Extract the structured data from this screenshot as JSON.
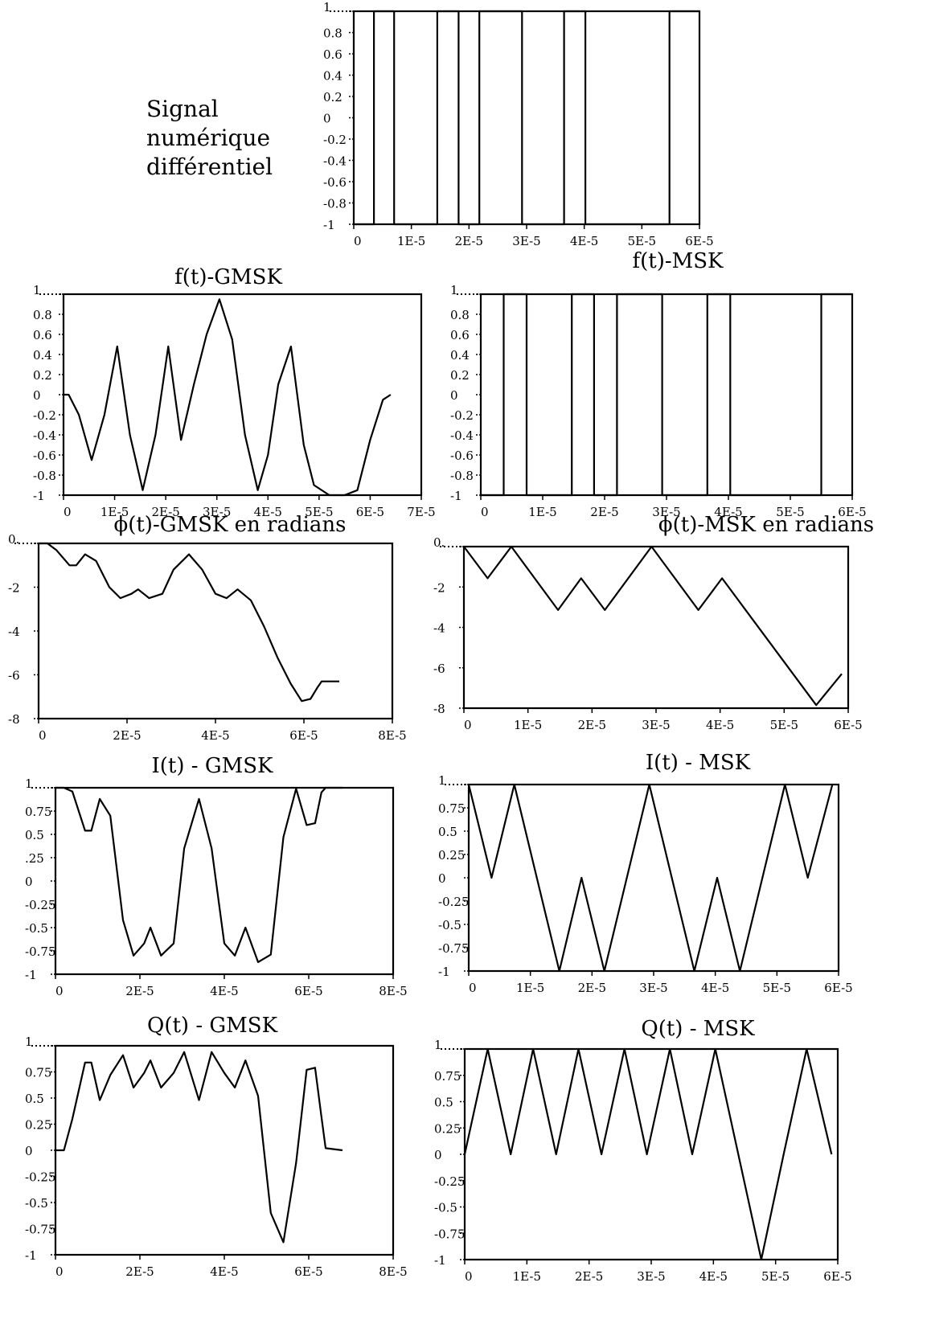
{
  "side_label": [
    "Signal",
    "numérique",
    "différentiel"
  ],
  "chart_data": [
    {
      "id": "digital",
      "type": "line",
      "title": "",
      "xlabel": "",
      "ylabel": "",
      "xlim": [
        0,
        6e-05
      ],
      "ylim": [
        -1,
        1
      ],
      "xticks": [
        "0",
        "1E-5",
        "2E-5",
        "3E-5",
        "4E-5",
        "5E-5",
        "6E-5"
      ],
      "xtick_values": [
        0,
        1e-05,
        2e-05,
        3e-05,
        4e-05,
        5e-05,
        6e-05
      ],
      "yticks": [
        "1",
        "0.8",
        "0.6",
        "0.4",
        "0.2",
        "0",
        "-0.2",
        "-0.4",
        "-0.6",
        "-0.8",
        "-1"
      ],
      "ytick_values": [
        1,
        0.8,
        0.6,
        0.4,
        0.2,
        0,
        -0.2,
        -0.4,
        -0.6,
        -0.8,
        -1
      ],
      "grid": false,
      "series": [
        {
          "x": [
            0,
            3.5e-06,
            3.5e-06,
            7e-06,
            7e-06,
            1.45e-05,
            1.45e-05,
            1.82e-05,
            1.82e-05,
            2.18e-05,
            2.18e-05,
            2.92e-05,
            2.92e-05,
            3.65e-05,
            3.65e-05,
            4.02e-05,
            4.02e-05,
            5.48e-05,
            5.48e-05,
            6e-05
          ],
          "y": [
            -1,
            -1,
            1,
            1,
            -1,
            -1,
            1,
            1,
            -1,
            -1,
            1,
            1,
            -1,
            -1,
            1,
            1,
            -1,
            -1,
            1,
            1
          ]
        }
      ]
    },
    {
      "id": "f-gmsk",
      "type": "line",
      "title": "f(t)-GMSK",
      "xlabel": "",
      "ylabel": "",
      "xlim": [
        0,
        7e-05
      ],
      "ylim": [
        -1,
        1
      ],
      "xticks": [
        "0",
        "1E-5",
        "2E-5",
        "3E-5",
        "4E-5",
        "5E-5",
        "6E-5",
        "7E-5"
      ],
      "xtick_values": [
        0,
        1e-05,
        2e-05,
        3e-05,
        4e-05,
        5e-05,
        6e-05,
        7e-05
      ],
      "yticks": [
        "1",
        "0.8",
        "0.6",
        "0.4",
        "0.2",
        "0",
        "-0.2",
        "-0.4",
        "-0.6",
        "-0.8",
        "-1"
      ],
      "ytick_values": [
        1,
        0.8,
        0.6,
        0.4,
        0.2,
        0,
        -0.2,
        -0.4,
        -0.6,
        -0.8,
        -1
      ],
      "grid": false,
      "series": [
        {
          "x": [
            0,
            1e-06,
            3e-06,
            5.5e-06,
            8e-06,
            1.05e-05,
            1.3e-05,
            1.55e-05,
            1.8e-05,
            2.05e-05,
            2.3e-05,
            2.55e-05,
            2.8e-05,
            3.05e-05,
            3.3e-05,
            3.55e-05,
            3.8e-05,
            4e-05,
            4.2e-05,
            4.45e-05,
            4.7e-05,
            4.9e-05,
            5.2e-05,
            5.5e-05,
            5.75e-05,
            6e-05,
            6.25e-05,
            6.4e-05
          ],
          "y": [
            0,
            0,
            -0.2,
            -0.65,
            -0.2,
            0.48,
            -0.4,
            -0.95,
            -0.4,
            0.48,
            -0.45,
            0.1,
            0.6,
            0.95,
            0.55,
            -0.4,
            -0.95,
            -0.6,
            0.1,
            0.48,
            -0.5,
            -0.9,
            -1,
            -1,
            -0.95,
            -0.45,
            -0.05,
            0
          ]
        }
      ]
    },
    {
      "id": "f-msk",
      "type": "line",
      "title": "f(t)-MSK",
      "xlabel": "",
      "ylabel": "",
      "xlim": [
        0,
        6e-05
      ],
      "ylim": [
        -1,
        1
      ],
      "xticks": [
        "0",
        "1E-5",
        "2E-5",
        "3E-5",
        "4E-5",
        "5E-5",
        "6E-5"
      ],
      "xtick_values": [
        0,
        1e-05,
        2e-05,
        3e-05,
        4e-05,
        5e-05,
        6e-05
      ],
      "yticks": [
        "1",
        "0.8",
        "0.6",
        "0.4",
        "0.2",
        "0",
        "-0.2",
        "-0.4",
        "-0.6",
        "-0.8",
        "-1"
      ],
      "ytick_values": [
        1,
        0.8,
        0.6,
        0.4,
        0.2,
        0,
        -0.2,
        -0.4,
        -0.6,
        -0.8,
        -1
      ],
      "grid": false,
      "series": [
        {
          "x": [
            0,
            3.7e-06,
            3.7e-06,
            7.4e-06,
            7.4e-06,
            1.47e-05,
            1.47e-05,
            1.83e-05,
            1.83e-05,
            2.2e-05,
            2.2e-05,
            2.93e-05,
            2.93e-05,
            3.66e-05,
            3.66e-05,
            4.03e-05,
            4.03e-05,
            5.5e-05,
            5.5e-05,
            6e-05
          ],
          "y": [
            -1,
            -1,
            1,
            1,
            -1,
            -1,
            1,
            1,
            -1,
            -1,
            1,
            1,
            -1,
            -1,
            1,
            1,
            -1,
            -1,
            1,
            1
          ]
        }
      ]
    },
    {
      "id": "phi-gmsk",
      "type": "line",
      "title": "ϕ(t)-GMSK en radians",
      "xlabel": "",
      "ylabel": "",
      "xlim": [
        0,
        8e-05
      ],
      "ylim": [
        -8,
        0
      ],
      "xticks": [
        "0",
        "2E-5",
        "4E-5",
        "6E-5",
        "8E-5"
      ],
      "xtick_values": [
        0,
        2e-05,
        4e-05,
        6e-05,
        8e-05
      ],
      "yticks": [
        "0.",
        "-2",
        "-4",
        "-6",
        "-8"
      ],
      "ytick_values": [
        0,
        -2,
        -4,
        -6,
        -8
      ],
      "grid": false,
      "series": [
        {
          "x": [
            0,
            2e-06,
            4e-06,
            7e-06,
            8.5e-06,
            1.05e-05,
            1.3e-05,
            1.6e-05,
            1.85e-05,
            2.1e-05,
            2.25e-05,
            2.5e-05,
            2.8e-05,
            3.05e-05,
            3.4e-05,
            3.7e-05,
            4e-05,
            4.25e-05,
            4.5e-05,
            4.8e-05,
            5.1e-05,
            5.4e-05,
            5.7e-05,
            5.95e-05,
            6.15e-05,
            6.3e-05,
            6.4e-05,
            6.8e-05
          ],
          "y": [
            0,
            0,
            -0.3,
            -1,
            -1,
            -0.5,
            -0.8,
            -2,
            -2.5,
            -2.3,
            -2.1,
            -2.5,
            -2.3,
            -1.2,
            -0.5,
            -1.2,
            -2.3,
            -2.5,
            -2.1,
            -2.6,
            -3.8,
            -5.2,
            -6.4,
            -7.2,
            -7.1,
            -6.6,
            -6.3,
            -6.3
          ]
        }
      ]
    },
    {
      "id": "phi-msk",
      "type": "line",
      "title": "ϕ(t)-MSK en radians",
      "xlabel": "",
      "ylabel": "",
      "xlim": [
        0,
        6e-05
      ],
      "ylim": [
        -8,
        0
      ],
      "xticks": [
        "0",
        "1E-5",
        "2E-5",
        "3E-5",
        "4E-5",
        "5E-5",
        "6E-5"
      ],
      "xtick_values": [
        0,
        1e-05,
        2e-05,
        3e-05,
        4e-05,
        5e-05,
        6e-05
      ],
      "yticks": [
        "0.",
        "-2",
        "-4",
        "-6",
        "-8"
      ],
      "ytick_values": [
        0,
        -2,
        -4,
        -6,
        -8
      ],
      "grid": false,
      "series": [
        {
          "x": [
            0,
            3.7e-06,
            7.4e-06,
            1.47e-05,
            1.83e-05,
            2.2e-05,
            2.93e-05,
            3.66e-05,
            4.03e-05,
            5.5e-05,
            5.9e-05
          ],
          "y": [
            0,
            -1.57,
            0,
            -3.14,
            -1.57,
            -3.14,
            0,
            -3.14,
            -1.57,
            -7.85,
            -6.3
          ]
        }
      ]
    },
    {
      "id": "i-gmsk",
      "type": "line",
      "title": "I(t) - GMSK",
      "xlabel": "",
      "ylabel": "",
      "xlim": [
        0,
        8e-05
      ],
      "ylim": [
        -1,
        1
      ],
      "xticks": [
        "0",
        "2E-5",
        "4E-5",
        "6E-5",
        "8E-5"
      ],
      "xtick_values": [
        0,
        2e-05,
        4e-05,
        6e-05,
        8e-05
      ],
      "yticks": [
        "1",
        "0.75",
        "0.5",
        ".25",
        "0",
        "-0.25",
        "-0.5",
        "-0.75",
        "-1"
      ],
      "ytick_values": [
        1,
        0.75,
        0.5,
        0.25,
        0,
        -0.25,
        -0.5,
        -0.75,
        -1
      ],
      "grid": false,
      "series": [
        {
          "x": [
            0,
            2e-06,
            4e-06,
            7e-06,
            8.5e-06,
            1.05e-05,
            1.3e-05,
            1.6e-05,
            1.85e-05,
            2.1e-05,
            2.25e-05,
            2.5e-05,
            2.8e-05,
            3.05e-05,
            3.4e-05,
            3.7e-05,
            4e-05,
            4.25e-05,
            4.5e-05,
            4.8e-05,
            5.1e-05,
            5.4e-05,
            5.7e-05,
            5.95e-05,
            6.15e-05,
            6.3e-05,
            6.4e-05,
            6.8e-05
          ],
          "y": [
            1,
            1,
            0.96,
            0.54,
            0.54,
            0.88,
            0.7,
            -0.42,
            -0.8,
            -0.67,
            -0.5,
            -0.8,
            -0.67,
            0.35,
            0.88,
            0.35,
            -0.67,
            -0.8,
            -0.5,
            -0.87,
            -0.79,
            0.47,
            0.99,
            0.6,
            0.62,
            0.95,
            1,
            1
          ]
        }
      ]
    },
    {
      "id": "i-msk",
      "type": "line",
      "title": "I(t) - MSK",
      "xlabel": "",
      "ylabel": "",
      "xlim": [
        0,
        6e-05
      ],
      "ylim": [
        -1,
        1
      ],
      "xticks": [
        "0",
        "1E-5",
        "2E-5",
        "3E-5",
        "4E-5",
        "5E-5",
        "6E-5"
      ],
      "xtick_values": [
        0,
        1e-05,
        2e-05,
        3e-05,
        4e-05,
        5e-05,
        6e-05
      ],
      "yticks": [
        "1",
        "0.75",
        "0.5",
        "0.25",
        "0",
        "-0.25",
        "-0.5",
        "-0.75",
        "-1"
      ],
      "ytick_values": [
        1,
        0.75,
        0.5,
        0.25,
        0,
        -0.25,
        -0.5,
        -0.75,
        -1
      ],
      "grid": false,
      "series": [
        {
          "x": [
            0,
            3.7e-06,
            7.4e-06,
            1.47e-05,
            1.83e-05,
            2.2e-05,
            2.93e-05,
            3.66e-05,
            4.03e-05,
            4.4e-05,
            5.13e-05,
            5.5e-05,
            5.9e-05
          ],
          "y": [
            1,
            0,
            1,
            -1,
            0,
            -1,
            1,
            -1,
            0,
            -1,
            1,
            0,
            1
          ]
        }
      ]
    },
    {
      "id": "q-gmsk",
      "type": "line",
      "title": "Q(t) - GMSK",
      "xlabel": "",
      "ylabel": "",
      "xlim": [
        0,
        8e-05
      ],
      "ylim": [
        -1,
        1
      ],
      "xticks": [
        "0",
        "2E-5",
        "4E-5",
        "6E-5",
        "8E-5"
      ],
      "xtick_values": [
        0,
        2e-05,
        4e-05,
        6e-05,
        8e-05
      ],
      "yticks": [
        "1",
        "0.75",
        "0.5",
        "0.25",
        "0",
        "-0.25",
        "-0.5",
        "-0.75",
        "-1"
      ],
      "ytick_values": [
        1,
        0.75,
        0.5,
        0.25,
        0,
        -0.25,
        -0.5,
        -0.75,
        -1
      ],
      "grid": false,
      "series": [
        {
          "x": [
            0,
            2e-06,
            4e-06,
            7e-06,
            8.5e-06,
            1.05e-05,
            1.3e-05,
            1.6e-05,
            1.85e-05,
            2.1e-05,
            2.25e-05,
            2.5e-05,
            2.8e-05,
            3.05e-05,
            3.4e-05,
            3.7e-05,
            4e-05,
            4.25e-05,
            4.5e-05,
            4.8e-05,
            5.1e-05,
            5.4e-05,
            5.7e-05,
            5.95e-05,
            6.15e-05,
            6.3e-05,
            6.4e-05,
            6.8e-05
          ],
          "y": [
            0,
            0,
            0.3,
            0.84,
            0.84,
            0.48,
            0.72,
            0.91,
            0.6,
            0.74,
            0.86,
            0.6,
            0.74,
            0.94,
            0.48,
            0.94,
            0.74,
            0.6,
            0.86,
            0.52,
            -0.6,
            -0.88,
            -0.12,
            0.77,
            0.79,
            0.32,
            0.02,
            0
          ]
        }
      ]
    },
    {
      "id": "q-msk",
      "type": "line",
      "title": "Q(t) - MSK",
      "xlabel": "",
      "ylabel": "",
      "xlim": [
        0,
        6e-05
      ],
      "ylim": [
        -1,
        1
      ],
      "xticks": [
        "0",
        "1E-5",
        "2E-5",
        "3E-5",
        "4E-5",
        "5E-5",
        "6E-5"
      ],
      "xtick_values": [
        0,
        1e-05,
        2e-05,
        3e-05,
        4e-05,
        5e-05,
        6e-05
      ],
      "yticks": [
        "1",
        "0.75",
        "0.5",
        "0.25",
        "0",
        "-0.25",
        "-0.5",
        "-0.75",
        "-1"
      ],
      "ytick_values": [
        1,
        0.75,
        0.5,
        0.25,
        0,
        -0.25,
        -0.5,
        -0.75,
        -1
      ],
      "grid": false,
      "series": [
        {
          "x": [
            0,
            3.7e-06,
            7.4e-06,
            1.1e-05,
            1.47e-05,
            1.83e-05,
            2.2e-05,
            2.57e-05,
            2.93e-05,
            3.3e-05,
            3.66e-05,
            4.03e-05,
            4.4e-05,
            4.77e-05,
            5.13e-05,
            5.5e-05,
            5.9e-05
          ],
          "y": [
            0,
            1,
            0,
            1,
            0,
            1,
            0,
            1,
            0,
            1,
            0,
            1,
            0,
            -1,
            0,
            1,
            0
          ]
        }
      ]
    }
  ]
}
